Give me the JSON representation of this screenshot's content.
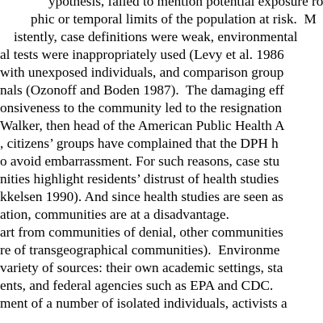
{
  "document": {
    "lines": [
      "ypothesis, failed to mention potential exposure route",
      "phic or temporal limits of the population at risk.  M",
      "istently, case definitions were weak, environmental",
      "al tests were inappropriately used (Levy et al. 1986",
      "with unexposed individuals, and comparison group",
      "nals (Ozonoff and Boden 1987).  The damaging eff",
      "onsiveness to the community led to the resignation",
      "Walker, then head of the American Public Health A",
      ", citizens’ groups have complained that the DPH h",
      "o avoid embarrassment. For such reasons, case stu",
      "nities highlight residents’ distrust of health studies",
      "kkelsen 1990). And since health studies are seen as",
      "ation, communities are at a disadvantage.",
      "art from communities of denial, other communities",
      "re of transgeographical communities).  Environme",
      "variety of sources: their own academic settings, sta",
      "ents, and federal agencies such as EPA and CDC.",
      "ment of a number of isolated individuals, activists a"
    ]
  }
}
